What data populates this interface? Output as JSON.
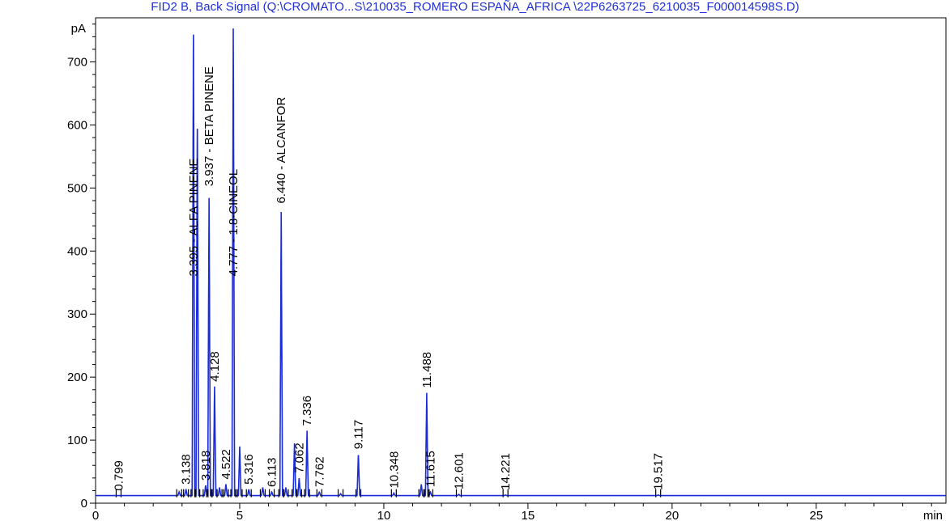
{
  "chart_data": {
    "type": "line",
    "title": "FID2 B, Back Signal (Q:\\CROMATO...S\\210035_ROMERO ESPAÑA_AFRICA \\22P6263725_6210035_F000014598S.D)",
    "ylabel": "pA",
    "xlabel": "min",
    "xlim": [
      0,
      29.5
    ],
    "ylim": [
      0,
      770
    ],
    "x_ticks": [
      0,
      5,
      10,
      15,
      20,
      25
    ],
    "y_ticks": [
      0,
      100,
      200,
      300,
      400,
      500,
      600,
      700
    ],
    "baseline": 12,
    "series": [
      {
        "peaks": [
          {
            "rt": 0.799,
            "height": 12
          },
          {
            "rt": 2.9,
            "height": 18
          },
          {
            "rt": 3.138,
            "height": 22
          },
          {
            "rt": 3.395,
            "height": 760
          },
          {
            "rt": 3.53,
            "height": 620
          },
          {
            "rt": 3.818,
            "height": 28
          },
          {
            "rt": 3.937,
            "height": 495
          },
          {
            "rt": 4.128,
            "height": 185
          },
          {
            "rt": 4.3,
            "height": 25
          },
          {
            "rt": 4.522,
            "height": 30
          },
          {
            "rt": 4.777,
            "height": 770
          },
          {
            "rt": 5.0,
            "height": 90
          },
          {
            "rt": 5.316,
            "height": 22
          },
          {
            "rt": 5.8,
            "height": 25
          },
          {
            "rt": 6.113,
            "height": 18
          },
          {
            "rt": 6.44,
            "height": 462
          },
          {
            "rt": 6.6,
            "height": 25
          },
          {
            "rt": 6.9,
            "height": 95
          },
          {
            "rt": 7.062,
            "height": 40
          },
          {
            "rt": 7.336,
            "height": 115
          },
          {
            "rt": 7.762,
            "height": 18
          },
          {
            "rt": 8.5,
            "height": 15
          },
          {
            "rt": 9.117,
            "height": 78
          },
          {
            "rt": 10.348,
            "height": 16
          },
          {
            "rt": 11.3,
            "height": 30
          },
          {
            "rt": 11.488,
            "height": 175
          },
          {
            "rt": 11.615,
            "height": 18
          },
          {
            "rt": 12.601,
            "height": 14
          },
          {
            "rt": 14.221,
            "height": 13
          },
          {
            "rt": 19.517,
            "height": 13
          }
        ]
      }
    ],
    "peak_labels": [
      {
        "rt": "0.799"
      },
      {
        "rt": "3.138"
      },
      {
        "rt": "3.395",
        "name": "ALFA PINENE"
      },
      {
        "rt": "3.818"
      },
      {
        "rt": "3.937",
        "name": "BETA PINENE"
      },
      {
        "rt": "4.128"
      },
      {
        "rt": "4.522"
      },
      {
        "rt": "4.777",
        "name": "1.8-CINEOL"
      },
      {
        "rt": "5.316"
      },
      {
        "rt": "6.113"
      },
      {
        "rt": "6.440",
        "name": "ALCANFOR"
      },
      {
        "rt": "7.062"
      },
      {
        "rt": "7.336"
      },
      {
        "rt": "7.762"
      },
      {
        "rt": "9.117"
      },
      {
        "rt": "10.348"
      },
      {
        "rt": "11.488"
      },
      {
        "rt": "11.615"
      },
      {
        "rt": "12.601"
      },
      {
        "rt": "14.221"
      },
      {
        "rt": "19.517"
      }
    ],
    "grid": false,
    "colors": {
      "trace": "#1a2bd8",
      "baseline_marks": "#000000",
      "title": "#1f2fd6",
      "frame": "#000000"
    }
  }
}
